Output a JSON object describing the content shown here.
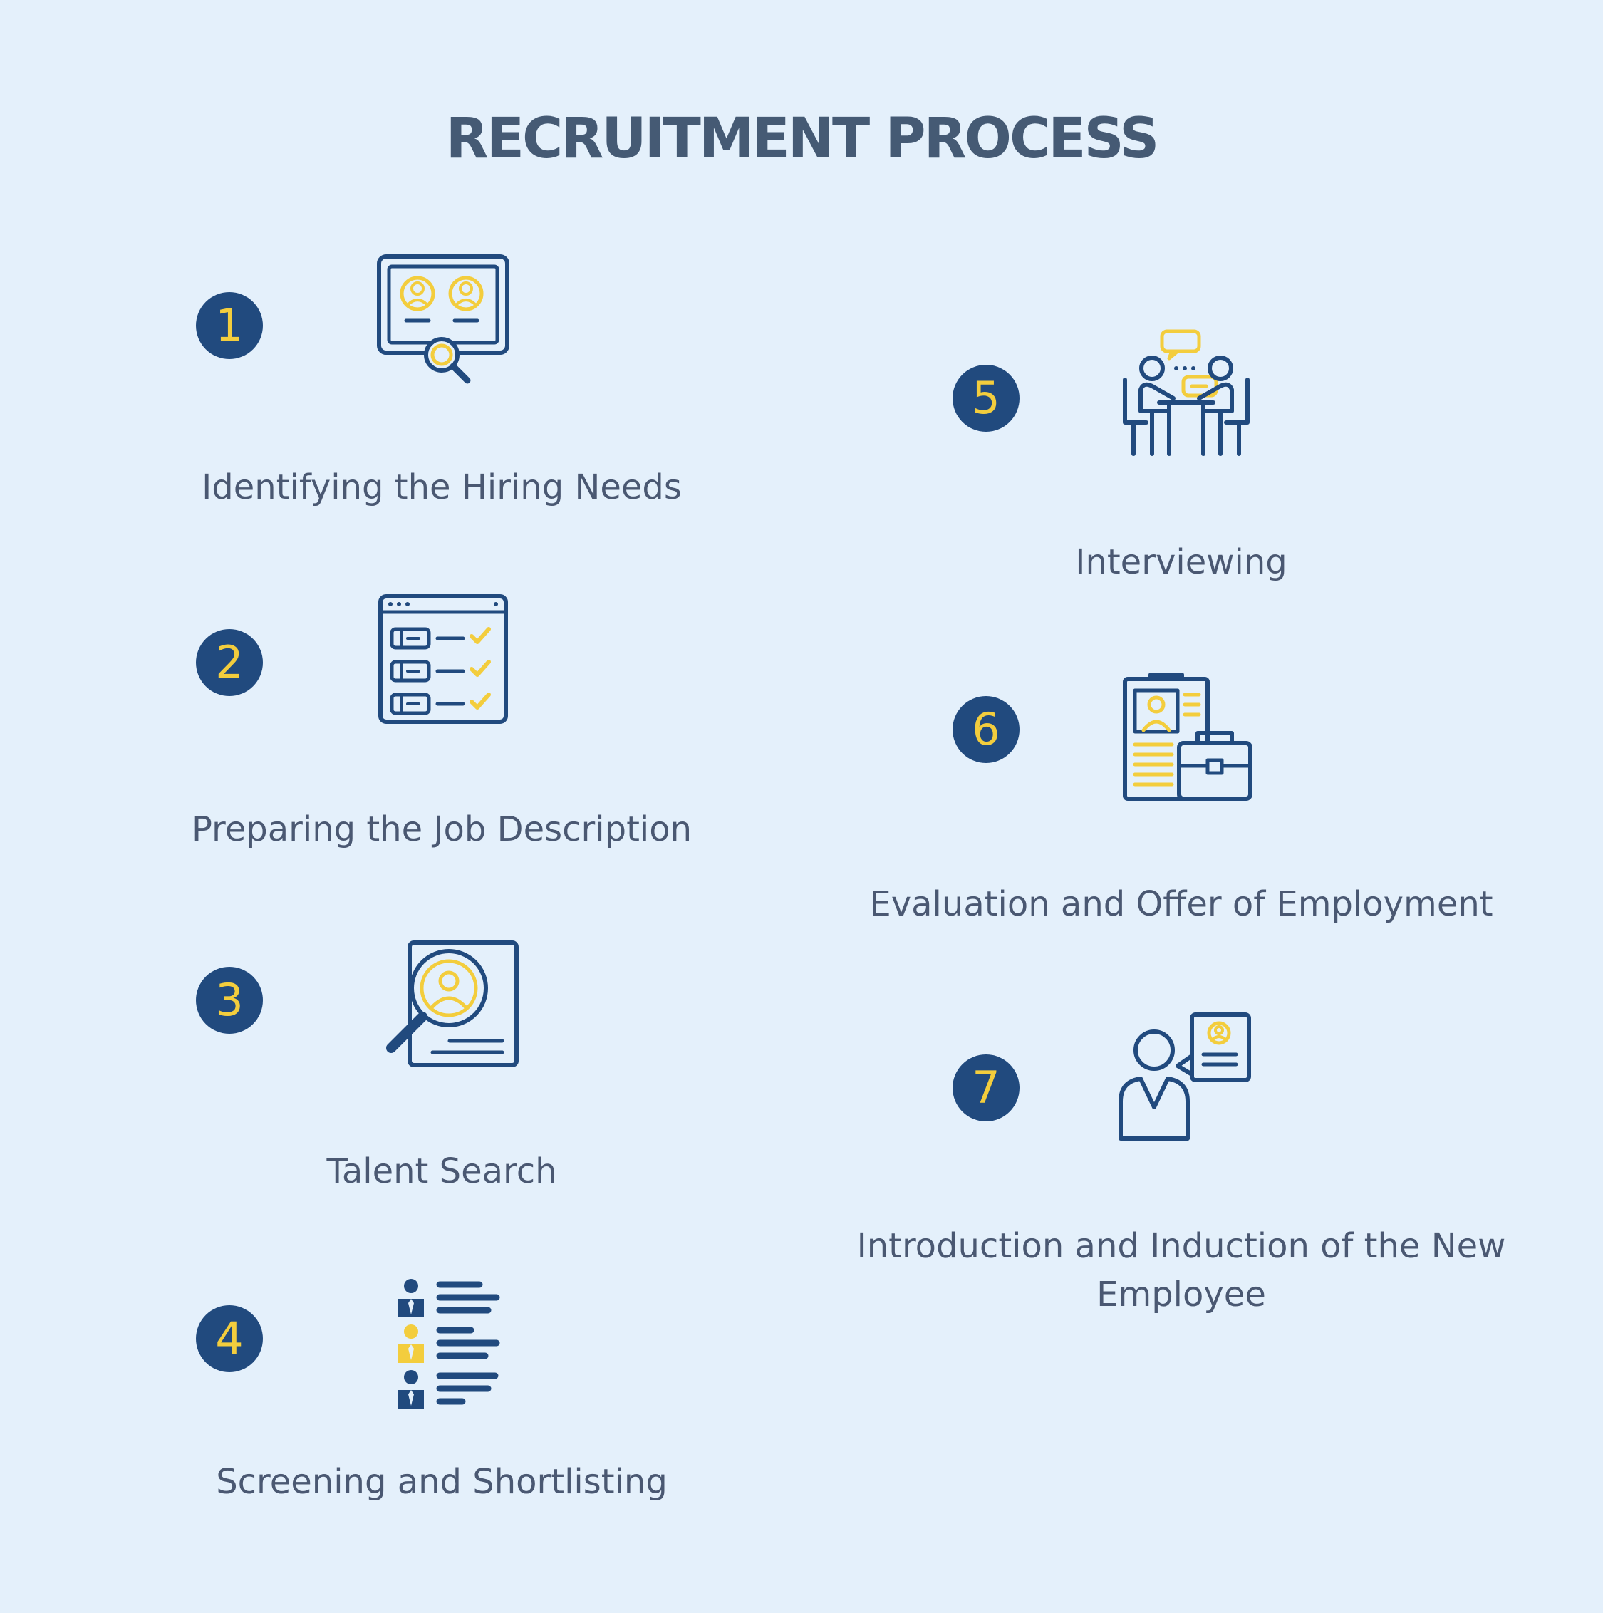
{
  "title": "RECRUITMENT PROCESS",
  "colors": {
    "navy": "#214a7e",
    "yellow": "#f3cd3d",
    "text": "#4a5872",
    "background": "#e4f0fb"
  },
  "steps": [
    {
      "number": "1",
      "label": "Identifying the Hiring Needs",
      "icon": "candidate-search-icon"
    },
    {
      "number": "2",
      "label": "Preparing the Job Description",
      "icon": "checklist-icon"
    },
    {
      "number": "3",
      "label": "Talent Search",
      "icon": "profile-search-icon"
    },
    {
      "number": "4",
      "label": "Screening and Shortlisting",
      "icon": "candidate-list-icon"
    },
    {
      "number": "5",
      "label": "Interviewing",
      "icon": "interview-icon"
    },
    {
      "number": "6",
      "label": "Evaluation and Offer of Employment",
      "icon": "job-offer-icon"
    },
    {
      "number": "7",
      "label": "Introduction and Induction of the New Employee",
      "icon": "new-employee-icon"
    }
  ]
}
